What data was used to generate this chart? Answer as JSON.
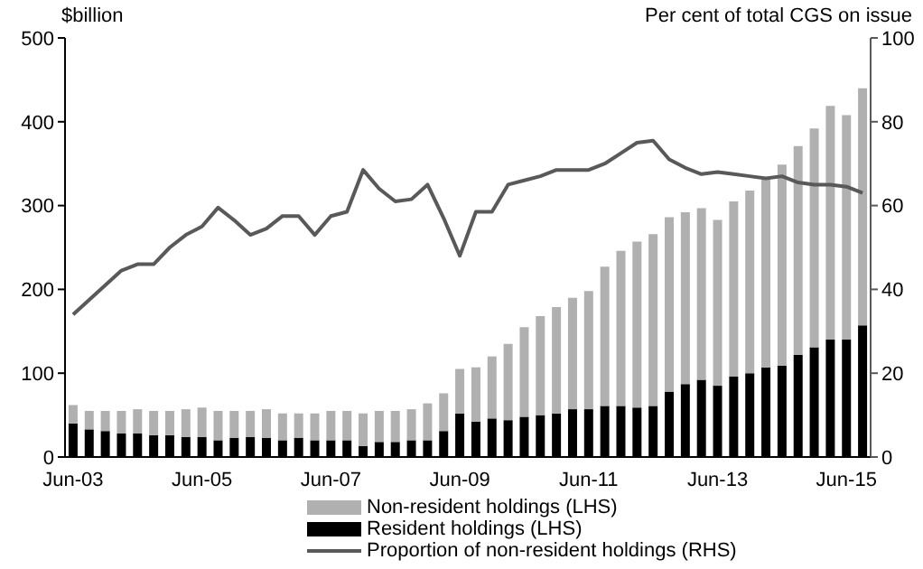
{
  "chart_data": {
    "type": "bar",
    "stacked": true,
    "ylabel": "$billion",
    "y2label": "Per cent of total CGS on issue",
    "categories": [
      "Jun-03",
      null,
      null,
      null,
      null,
      null,
      null,
      null,
      "Jun-05",
      null,
      null,
      null,
      null,
      null,
      null,
      null,
      "Jun-07",
      null,
      null,
      null,
      null,
      null,
      null,
      null,
      "Jun-09",
      null,
      null,
      null,
      null,
      null,
      null,
      null,
      "Jun-11",
      null,
      null,
      null,
      null,
      null,
      null,
      null,
      "Jun-13",
      null,
      null,
      null,
      null,
      null,
      null,
      null,
      "Jun-15",
      null
    ],
    "series": [
      {
        "name": "Resident holdings (LHS)",
        "color": "#000000",
        "values": [
          40,
          33,
          31,
          28,
          28,
          26,
          26,
          24,
          24,
          20,
          23,
          24,
          23,
          20,
          23,
          20,
          20,
          20,
          13,
          18,
          18,
          20,
          20,
          31,
          52,
          42,
          46,
          44,
          48,
          50,
          52,
          57,
          57,
          61,
          61,
          59,
          61,
          78,
          87,
          92,
          85,
          96,
          100,
          107,
          109,
          122,
          131,
          140,
          140,
          157
        ]
      },
      {
        "name": "Non-resident holdings (LHS)",
        "color": "#b0b0b0",
        "values": [
          22,
          22,
          24,
          27,
          29,
          29,
          29,
          33,
          35,
          35,
          32,
          31,
          34,
          32,
          29,
          32,
          35,
          35,
          39,
          37,
          37,
          37,
          44,
          45,
          53,
          65,
          74,
          91,
          107,
          118,
          127,
          133,
          141,
          166,
          185,
          198,
          205,
          208,
          205,
          205,
          198,
          209,
          218,
          224,
          240,
          249,
          261,
          279,
          268,
          283
        ]
      },
      {
        "name": "Proportion of non-resident holdings (RHS)",
        "type": "line",
        "axis": "y2",
        "color": "#595959",
        "values": [
          34,
          37.5,
          41,
          44.5,
          46,
          46,
          50,
          53,
          55,
          59.5,
          56.5,
          53,
          54.5,
          57.5,
          57.5,
          53,
          57.5,
          58.5,
          68.5,
          64,
          61,
          61.5,
          65,
          57,
          48,
          58.5,
          58.5,
          65,
          66,
          67,
          68.5,
          68.5,
          68.5,
          70,
          72.5,
          75,
          75.5,
          71,
          69,
          67.5,
          68,
          67.5,
          67,
          66.5,
          67,
          65.5,
          65,
          65,
          64.5,
          63
        ]
      }
    ],
    "ylim": [
      0,
      500
    ],
    "yticks": [
      0,
      100,
      200,
      300,
      400,
      500
    ],
    "y2lim": [
      0,
      100
    ],
    "y2ticks": [
      0,
      20,
      40,
      60,
      80,
      100
    ],
    "grid": false,
    "legend": "bottom",
    "marker": "none",
    "line_style": "solid"
  }
}
